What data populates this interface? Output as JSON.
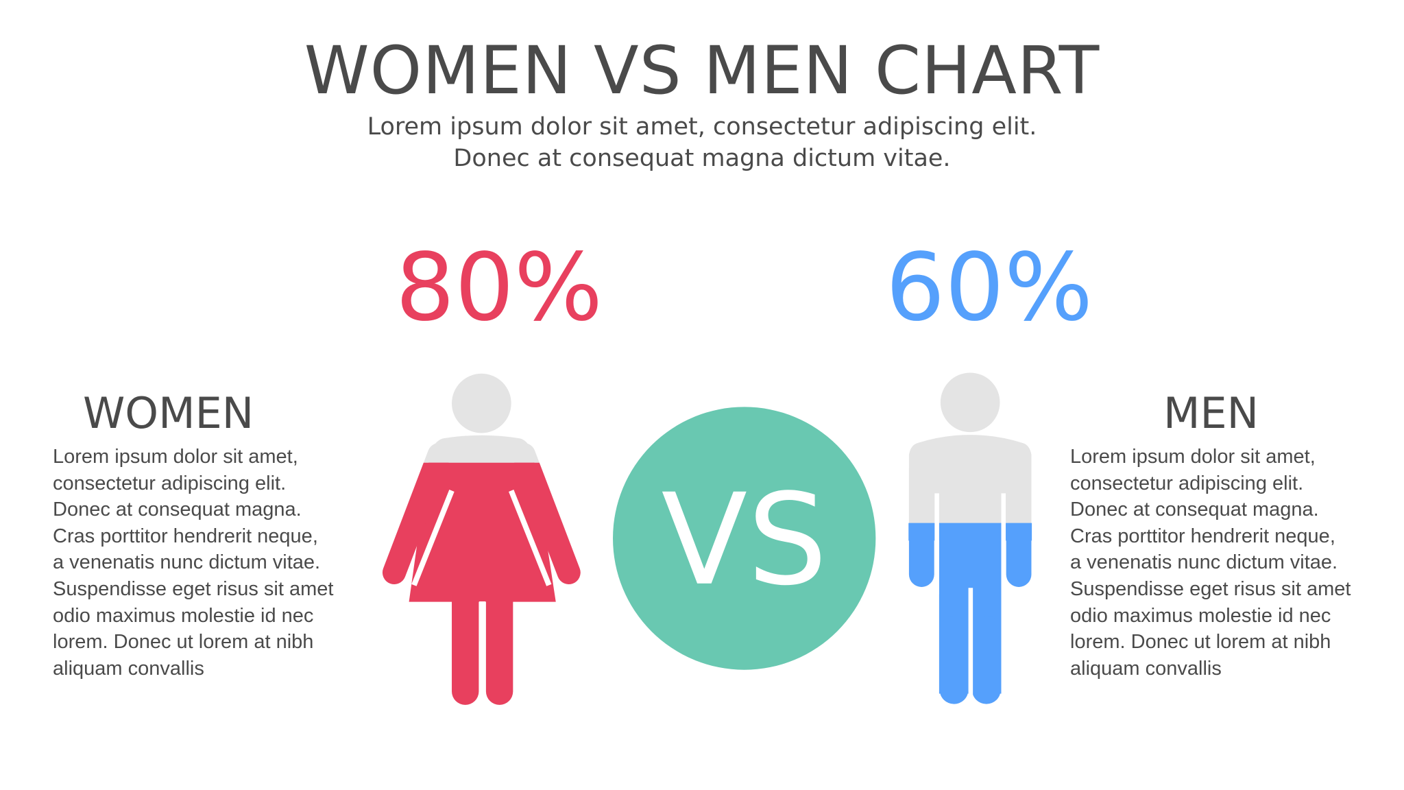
{
  "title": "WOMEN VS MEN CHART",
  "subtitle": [
    "Lorem ipsum dolor sit amet, consectetur adipiscing elit.",
    "Donec at consequat magna dictum vitae."
  ],
  "vs_label": "VS",
  "colors": {
    "women": "#E8405E",
    "men": "#55A0FC",
    "vs_circle": "#69C8B1",
    "figure_empty": "#E4E4E4",
    "text": "#4A4A4A"
  },
  "women": {
    "heading": "WOMEN",
    "percent_label": "80%",
    "percent": 80,
    "icon": "female-figure-icon",
    "paragraph": [
      "Lorem ipsum dolor sit amet,",
      "consectetur adipiscing elit.",
      "Donec at consequat magna.",
      "Cras porttitor hendrerit neque,",
      "a venenatis nunc dictum vitae.",
      "Suspendisse eget risus sit amet",
      "odio maximus molestie id nec",
      "lorem. Donec ut lorem at nibh",
      "aliquam convallis"
    ]
  },
  "men": {
    "heading": "MEN",
    "percent_label": "60%",
    "percent": 60,
    "icon": "male-figure-icon",
    "paragraph": [
      "Lorem ipsum dolor sit amet,",
      "consectetur adipiscing elit.",
      "Donec at consequat magna.",
      "Cras porttitor hendrerit neque,",
      "a venenatis nunc dictum vitae.",
      "Suspendisse eget risus sit amet",
      "odio maximus molestie id nec",
      "lorem. Donec ut lorem at nibh",
      "aliquam convallis"
    ]
  }
}
